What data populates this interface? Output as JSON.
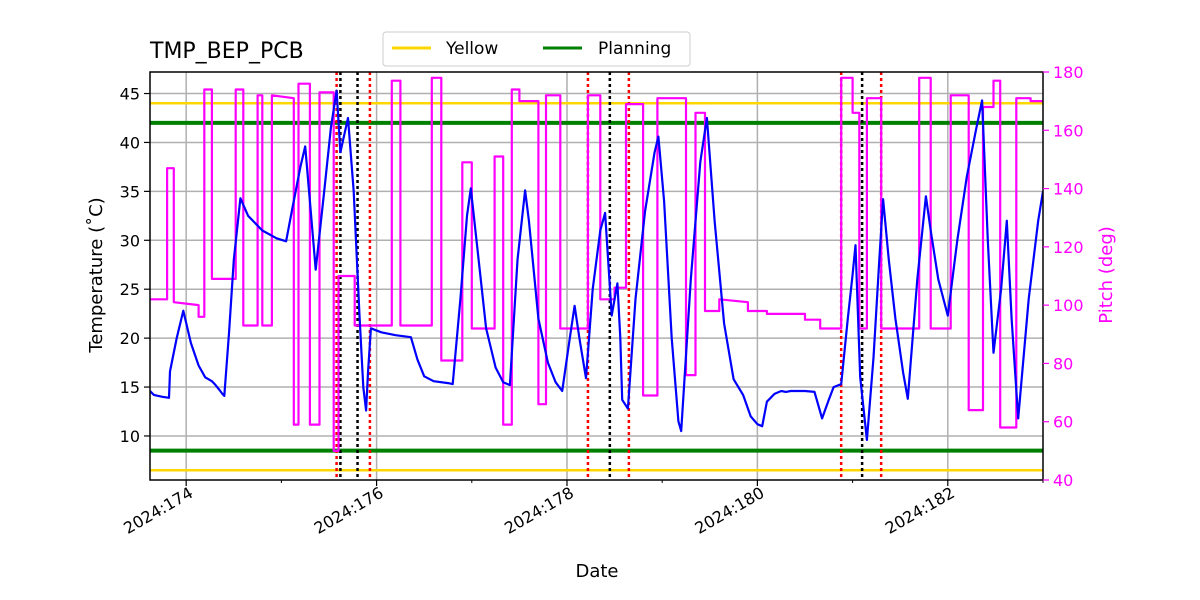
{
  "chart_data": {
    "type": "line",
    "title": "TMP_BEP_PCB",
    "xlabel": "Date",
    "ylabel": "Temperature ($^\\circ$C)",
    "ylabel_display": "Temperature (˚C)",
    "y2label": "Pitch (deg)",
    "xlim": [
      173.62,
      183.0
    ],
    "ylim": [
      5.5,
      47.2
    ],
    "y2lim": [
      40,
      180
    ],
    "x_ticks": [
      174,
      176,
      178,
      180,
      182
    ],
    "x_tick_labels": [
      "2024:174",
      "2024:176",
      "2024:178",
      "2024:180",
      "2024:182"
    ],
    "x_minor_ticks": [
      175,
      177,
      179,
      181,
      183
    ],
    "y_ticks": [
      10,
      15,
      20,
      25,
      30,
      35,
      40,
      45
    ],
    "y2_ticks": [
      40,
      60,
      80,
      100,
      120,
      140,
      160,
      180
    ],
    "grid": true,
    "legend": {
      "placement": "top-center",
      "entries": [
        {
          "name": "Yellow",
          "color": "#ffd700"
        },
        {
          "name": "Planning",
          "color": "#008000"
        }
      ]
    },
    "limits": {
      "yellow": [
        6.5,
        44
      ],
      "planning": [
        8.5,
        42
      ]
    },
    "colors": {
      "temperature": "#0000ff",
      "pitch": "#ff00ff",
      "yellow": "#ffd700",
      "planning": "#008000",
      "vline_red": "#ff0000",
      "vline_black": "#000000",
      "grid": "#b0b0b0",
      "right_axis": "#ff00ff"
    },
    "vlines": [
      {
        "x": 175.58,
        "color": "red"
      },
      {
        "x": 175.62,
        "color": "black"
      },
      {
        "x": 175.8,
        "color": "black"
      },
      {
        "x": 175.93,
        "color": "red"
      },
      {
        "x": 178.22,
        "color": "red"
      },
      {
        "x": 178.45,
        "color": "black"
      },
      {
        "x": 178.65,
        "color": "red"
      },
      {
        "x": 180.88,
        "color": "red"
      },
      {
        "x": 181.1,
        "color": "black"
      },
      {
        "x": 181.3,
        "color": "red"
      }
    ],
    "series": [
      {
        "name": "",
        "axis": "left",
        "points": [
          [
            173.62,
            14.6
          ],
          [
            173.66,
            14.2
          ],
          [
            173.75,
            14.0
          ],
          [
            173.82,
            13.9
          ],
          [
            173.83,
            16.6
          ],
          [
            173.9,
            20.0
          ],
          [
            173.97,
            22.8
          ],
          [
            174.05,
            19.5
          ],
          [
            174.13,
            17.2
          ],
          [
            174.2,
            16.0
          ],
          [
            174.27,
            15.6
          ],
          [
            174.3,
            15.3
          ],
          [
            174.35,
            14.7
          ],
          [
            174.38,
            14.3
          ],
          [
            174.4,
            14.1
          ],
          [
            174.45,
            20.5
          ],
          [
            174.5,
            28.0
          ],
          [
            174.57,
            34.3
          ],
          [
            174.65,
            32.5
          ],
          [
            174.8,
            31.0
          ],
          [
            174.95,
            30.2
          ],
          [
            175.05,
            29.9
          ],
          [
            175.12,
            33.5
          ],
          [
            175.2,
            37.5
          ],
          [
            175.25,
            39.6
          ],
          [
            175.3,
            34.0
          ],
          [
            175.36,
            27.0
          ],
          [
            175.45,
            35.0
          ],
          [
            175.52,
            41.5
          ],
          [
            175.58,
            45.3
          ],
          [
            175.62,
            39.0
          ],
          [
            175.7,
            42.5
          ],
          [
            175.76,
            35.0
          ],
          [
            175.82,
            22.5
          ],
          [
            175.86,
            15.0
          ],
          [
            175.89,
            12.6
          ],
          [
            175.91,
            16.5
          ],
          [
            175.94,
            21.0
          ],
          [
            176.05,
            20.6
          ],
          [
            176.2,
            20.3
          ],
          [
            176.36,
            20.1
          ],
          [
            176.43,
            17.8
          ],
          [
            176.5,
            16.1
          ],
          [
            176.6,
            15.6
          ],
          [
            176.75,
            15.4
          ],
          [
            176.8,
            15.3
          ],
          [
            176.88,
            24.0
          ],
          [
            176.95,
            32.5
          ],
          [
            176.99,
            35.3
          ],
          [
            177.05,
            30.0
          ],
          [
            177.15,
            21.0
          ],
          [
            177.25,
            17.0
          ],
          [
            177.33,
            15.5
          ],
          [
            177.4,
            15.2
          ],
          [
            177.48,
            28.0
          ],
          [
            177.56,
            35.1
          ],
          [
            177.6,
            32.0
          ],
          [
            177.7,
            22.0
          ],
          [
            177.8,
            17.5
          ],
          [
            177.88,
            15.5
          ],
          [
            177.95,
            14.6
          ],
          [
            178.03,
            20.0
          ],
          [
            178.08,
            23.3
          ],
          [
            178.13,
            20.0
          ],
          [
            178.2,
            15.9
          ],
          [
            178.27,
            25.0
          ],
          [
            178.35,
            31.0
          ],
          [
            178.4,
            32.8
          ],
          [
            178.47,
            22.3
          ],
          [
            178.53,
            25.6
          ],
          [
            178.56,
            20.0
          ],
          [
            178.58,
            13.7
          ],
          [
            178.64,
            12.8
          ],
          [
            178.72,
            24.0
          ],
          [
            178.82,
            33.0
          ],
          [
            178.92,
            39.0
          ],
          [
            178.96,
            40.6
          ],
          [
            179.02,
            34.0
          ],
          [
            179.1,
            20.0
          ],
          [
            179.17,
            11.5
          ],
          [
            179.2,
            10.5
          ],
          [
            179.3,
            26.0
          ],
          [
            179.4,
            38.0
          ],
          [
            179.47,
            42.5
          ],
          [
            179.55,
            32.0
          ],
          [
            179.65,
            21.5
          ],
          [
            179.75,
            15.8
          ],
          [
            179.85,
            14.2
          ],
          [
            179.93,
            12.0
          ],
          [
            180.0,
            11.2
          ],
          [
            180.05,
            11.0
          ],
          [
            180.1,
            13.5
          ],
          [
            180.18,
            14.3
          ],
          [
            180.25,
            14.6
          ],
          [
            180.3,
            14.5
          ],
          [
            180.35,
            14.6
          ],
          [
            180.5,
            14.6
          ],
          [
            180.6,
            14.5
          ],
          [
            180.68,
            11.8
          ],
          [
            180.75,
            13.7
          ],
          [
            180.8,
            15.0
          ],
          [
            180.88,
            15.3
          ],
          [
            180.95,
            22.0
          ],
          [
            181.0,
            26.5
          ],
          [
            181.03,
            29.5
          ],
          [
            181.08,
            16.0
          ],
          [
            181.15,
            9.6
          ],
          [
            181.22,
            18.0
          ],
          [
            181.28,
            28.0
          ],
          [
            181.32,
            34.2
          ],
          [
            181.38,
            28.0
          ],
          [
            181.45,
            22.0
          ],
          [
            181.53,
            16.5
          ],
          [
            181.58,
            13.8
          ],
          [
            181.68,
            26.0
          ],
          [
            181.77,
            34.5
          ],
          [
            181.82,
            31.0
          ],
          [
            181.9,
            26.0
          ],
          [
            182.0,
            22.3
          ],
          [
            182.1,
            30.0
          ],
          [
            182.2,
            36.5
          ],
          [
            182.3,
            41.5
          ],
          [
            182.36,
            44.3
          ],
          [
            182.42,
            30.0
          ],
          [
            182.48,
            18.5
          ],
          [
            182.56,
            25.0
          ],
          [
            182.62,
            32.0
          ],
          [
            182.67,
            22.0
          ],
          [
            182.74,
            11.8
          ],
          [
            182.85,
            24.0
          ],
          [
            182.95,
            32.0
          ],
          [
            183.0,
            35.0
          ]
        ]
      },
      {
        "name": "",
        "axis": "right",
        "points": [
          [
            173.62,
            102
          ],
          [
            173.8,
            102
          ],
          [
            173.8,
            147
          ],
          [
            173.87,
            147
          ],
          [
            173.87,
            101
          ],
          [
            174.13,
            100
          ],
          [
            174.13,
            96
          ],
          [
            174.19,
            96
          ],
          [
            174.19,
            174
          ],
          [
            174.27,
            174
          ],
          [
            174.27,
            109
          ],
          [
            174.52,
            109
          ],
          [
            174.52,
            174
          ],
          [
            174.6,
            174
          ],
          [
            174.6,
            93
          ],
          [
            174.75,
            93
          ],
          [
            174.75,
            172
          ],
          [
            174.8,
            172
          ],
          [
            174.8,
            93
          ],
          [
            174.9,
            93
          ],
          [
            174.9,
            172
          ],
          [
            175.13,
            171
          ],
          [
            175.13,
            59
          ],
          [
            175.18,
            59
          ],
          [
            175.18,
            176
          ],
          [
            175.3,
            176
          ],
          [
            175.3,
            59
          ],
          [
            175.4,
            59
          ],
          [
            175.4,
            173
          ],
          [
            175.55,
            173
          ],
          [
            175.55,
            50
          ],
          [
            175.6,
            50
          ],
          [
            175.6,
            110
          ],
          [
            175.77,
            110
          ],
          [
            175.77,
            93
          ],
          [
            176.16,
            93
          ],
          [
            176.16,
            177
          ],
          [
            176.25,
            177
          ],
          [
            176.25,
            93
          ],
          [
            176.58,
            93
          ],
          [
            176.58,
            178
          ],
          [
            176.68,
            178
          ],
          [
            176.68,
            81
          ],
          [
            176.9,
            81
          ],
          [
            176.9,
            149
          ],
          [
            177.0,
            149
          ],
          [
            177.0,
            92
          ],
          [
            177.24,
            92
          ],
          [
            177.24,
            151
          ],
          [
            177.33,
            151
          ],
          [
            177.33,
            59
          ],
          [
            177.42,
            59
          ],
          [
            177.42,
            174
          ],
          [
            177.5,
            174
          ],
          [
            177.5,
            170
          ],
          [
            177.7,
            170
          ],
          [
            177.7,
            66
          ],
          [
            177.78,
            66
          ],
          [
            177.78,
            172
          ],
          [
            177.93,
            172
          ],
          [
            177.93,
            92
          ],
          [
            178.22,
            92
          ],
          [
            178.22,
            172
          ],
          [
            178.35,
            172
          ],
          [
            178.35,
            102
          ],
          [
            178.5,
            102
          ],
          [
            178.5,
            106
          ],
          [
            178.62,
            106
          ],
          [
            178.62,
            169
          ],
          [
            178.8,
            169
          ],
          [
            178.8,
            69
          ],
          [
            178.95,
            69
          ],
          [
            178.95,
            171
          ],
          [
            179.25,
            171
          ],
          [
            179.25,
            76
          ],
          [
            179.35,
            76
          ],
          [
            179.35,
            166
          ],
          [
            179.45,
            166
          ],
          [
            179.45,
            98
          ],
          [
            179.6,
            98
          ],
          [
            179.6,
            102
          ],
          [
            179.9,
            101
          ],
          [
            179.9,
            98
          ],
          [
            180.1,
            98
          ],
          [
            180.1,
            97
          ],
          [
            180.5,
            97
          ],
          [
            180.5,
            95
          ],
          [
            180.66,
            95
          ],
          [
            180.66,
            92
          ],
          [
            180.88,
            92
          ],
          [
            180.88,
            178
          ],
          [
            181.0,
            178
          ],
          [
            181.0,
            166
          ],
          [
            181.07,
            166
          ],
          [
            181.07,
            92
          ],
          [
            181.15,
            92
          ],
          [
            181.15,
            171
          ],
          [
            181.3,
            171
          ],
          [
            181.3,
            92
          ],
          [
            181.7,
            92
          ],
          [
            181.7,
            178
          ],
          [
            181.82,
            178
          ],
          [
            181.82,
            92
          ],
          [
            182.03,
            92
          ],
          [
            182.03,
            172
          ],
          [
            182.22,
            172
          ],
          [
            182.22,
            64
          ],
          [
            182.37,
            64
          ],
          [
            182.37,
            168
          ],
          [
            182.48,
            168
          ],
          [
            182.48,
            177
          ],
          [
            182.55,
            177
          ],
          [
            182.55,
            58
          ],
          [
            182.72,
            58
          ],
          [
            182.72,
            171
          ],
          [
            182.87,
            171
          ],
          [
            182.87,
            170
          ],
          [
            183.0,
            170
          ]
        ]
      }
    ]
  }
}
